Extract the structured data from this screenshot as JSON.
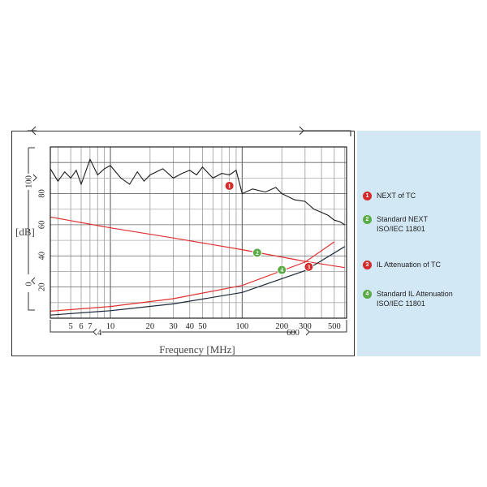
{
  "chart_data": {
    "type": "line",
    "xlabel": "Frequency [MHz]",
    "ylabel": "[dB]",
    "x_scale": "log",
    "xlim": [
      3.5,
      620
    ],
    "ylim": [
      0,
      110
    ],
    "grid": true,
    "x_ticks": [
      5,
      6,
      7,
      10,
      20,
      30,
      40,
      50,
      100,
      200,
      300,
      500
    ],
    "x_tick_labels": [
      "5",
      "6",
      "7",
      "10",
      "20",
      "30",
      "40",
      "50",
      "100",
      "200",
      "300",
      "500"
    ],
    "y_ticks": [
      20,
      40,
      60,
      80
    ],
    "y_tick_labels": [
      "20",
      "40",
      "60",
      "80"
    ],
    "y_range_labels": {
      "top": "100",
      "bottom": "0"
    },
    "x_range_labels": {
      "left": "4",
      "right": "600"
    },
    "series": [
      {
        "id": "next_tc",
        "color": "#1a1a1a",
        "x": [
          3.5,
          4,
          4.5,
          5,
          5.5,
          6,
          7,
          8,
          9,
          10,
          12,
          14,
          16,
          18,
          20,
          25,
          30,
          35,
          40,
          45,
          50,
          60,
          70,
          80,
          90,
          100,
          120,
          150,
          180,
          200,
          250,
          300,
          350,
          400,
          450,
          500,
          550,
          600
        ],
        "y": [
          96,
          88,
          94,
          90,
          95,
          86,
          102,
          92,
          96,
          98,
          90,
          86,
          94,
          88,
          92,
          96,
          90,
          93,
          95,
          92,
          97,
          90,
          93,
          92,
          95,
          80,
          83,
          81,
          84,
          80,
          76,
          75,
          70,
          68,
          66,
          63,
          62,
          60
        ]
      },
      {
        "id": "standard_next",
        "color": "#e03030",
        "x": [
          3.5,
          10,
          30,
          100,
          300,
          600
        ],
        "y": [
          65,
          58,
          51.5,
          44,
          36.5,
          32.5
        ]
      },
      {
        "id": "il_attenuation_tc",
        "color": "#e03030",
        "x": [
          3.5,
          10,
          30,
          100,
          300,
          500
        ],
        "y": [
          4.5,
          7.5,
          12.5,
          21,
          36,
          49
        ]
      },
      {
        "id": "standard_il_attenuation",
        "color": "#1e2a3a",
        "x": [
          3.5,
          10,
          30,
          100,
          300,
          600
        ],
        "y": [
          2,
          4.8,
          9.2,
          16.5,
          30.5,
          46
        ]
      }
    ],
    "markers": [
      {
        "label": "1",
        "color": "#d42a2a",
        "x": 80,
        "y": 85
      },
      {
        "label": "2",
        "color": "#5aaa46",
        "x": 130,
        "y": 42
      },
      {
        "label": "3",
        "color": "#d42a2a",
        "x": 320,
        "y": 33
      },
      {
        "label": "4",
        "color": "#5aaa46",
        "x": 200,
        "y": 31
      }
    ]
  },
  "legend": [
    {
      "num": "1",
      "color": "#d42a2a",
      "line1": "NEXT of TC",
      "line2": ""
    },
    {
      "num": "2",
      "color": "#5aaa46",
      "line1": "Standard NEXT",
      "line2": "ISO/IEC 11801"
    },
    {
      "num": "3",
      "color": "#d42a2a",
      "line1": "IL Attenuation of TC",
      "line2": ""
    },
    {
      "num": "4",
      "color": "#5aaa46",
      "line1": "Standard IL Attenuation",
      "line2": "ISO/IEC 11801"
    }
  ]
}
